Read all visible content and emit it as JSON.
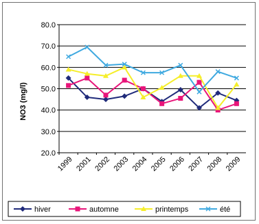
{
  "chart_data": {
    "type": "line",
    "ylabel": "NO3  (mg/l)",
    "ylim": [
      20,
      80
    ],
    "yticks": [
      "20.0",
      "30.0",
      "40.0",
      "50.0",
      "60.0",
      "70.0",
      "80.0"
    ],
    "categories": [
      "1999",
      "2001",
      "2002",
      "2003",
      "2004",
      "2005",
      "2006",
      "2007",
      "2008",
      "2009"
    ],
    "grid": true,
    "legend_position": "bottom",
    "series": [
      {
        "name": "hiver",
        "color": "#1f2a7a",
        "marker": "diamond",
        "values": [
          55,
          46,
          45,
          46.5,
          50,
          44,
          49.5,
          41,
          48,
          44.5
        ]
      },
      {
        "name": "automne",
        "color": "#e8157a",
        "marker": "square",
        "values": [
          51.5,
          55,
          47,
          54,
          50,
          43,
          45.5,
          53,
          40,
          43
        ]
      },
      {
        "name": "printemps",
        "color": "#f5ee2a",
        "marker": "triangle",
        "values": [
          59,
          57,
          56,
          60,
          46,
          50.5,
          56,
          56,
          41,
          52
        ]
      },
      {
        "name": "été",
        "color": "#3fa9e0",
        "marker": "x",
        "values": [
          65,
          69.5,
          61,
          61.5,
          57.5,
          57.5,
          61,
          48.5,
          58,
          55
        ]
      }
    ]
  }
}
